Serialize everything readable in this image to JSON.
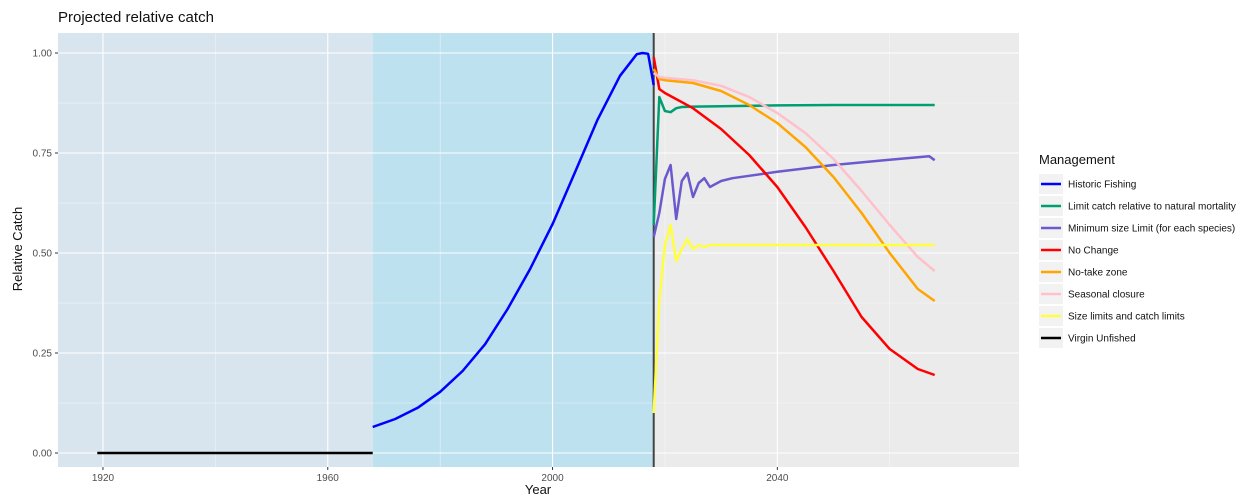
{
  "chart_data": {
    "type": "line",
    "title": "Projected relative catch",
    "xlabel": "Year",
    "ylabel": "Relative Catch",
    "xlim": [
      1912,
      2083
    ],
    "ylim": [
      -0.035,
      1.05
    ],
    "x_ticks": [
      1920,
      1960,
      2000,
      2040
    ],
    "x_tick_labels": [
      "1920",
      "1960",
      "2000",
      "2040"
    ],
    "y_ticks": [
      0,
      0.25,
      0.5,
      0.75,
      1.0
    ],
    "y_tick_labels": [
      "0.00",
      "0.25",
      "0.50",
      "0.75",
      "1.00"
    ],
    "grid": true,
    "legend_position": "right",
    "legend_title": "Management",
    "background_regions": [
      {
        "x_start": 1912,
        "x_end": 1968,
        "color": "#d8e5ee"
      },
      {
        "x_start": 1968,
        "x_end": 2018,
        "color": "#bde1ef"
      },
      {
        "x_start": 2018,
        "x_end": 2083,
        "color": "#ebebeb"
      }
    ],
    "vertical_line": {
      "x": 2018,
      "color": "#444444"
    },
    "series": [
      {
        "name": "Historic Fishing",
        "color": "#0000ff",
        "x": [
          1968,
          1972,
          1976,
          1980,
          1984,
          1988,
          1992,
          1996,
          2000,
          2004,
          2008,
          2012,
          2015,
          2016,
          2017,
          2018
        ],
        "y": [
          0.065,
          0.085,
          0.113,
          0.153,
          0.205,
          0.272,
          0.36,
          0.46,
          0.572,
          0.702,
          0.833,
          0.943,
          0.997,
          1.0,
          0.998,
          0.92
        ]
      },
      {
        "name": "Limit catch relative to natural mortality",
        "color": "#009e73",
        "x": [
          2018,
          2019,
          2020,
          2021,
          2022,
          2023,
          2025,
          2030,
          2040,
          2050,
          2060,
          2068
        ],
        "y": [
          0.57,
          0.89,
          0.855,
          0.852,
          0.862,
          0.865,
          0.866,
          0.867,
          0.869,
          0.87,
          0.87,
          0.87
        ]
      },
      {
        "name": "Minimum size Limit (for each species)",
        "color": "#6a5acd",
        "x": [
          2018,
          2019,
          2020,
          2021,
          2022,
          2023,
          2024,
          2025,
          2026,
          2027,
          2028,
          2030,
          2032,
          2035,
          2040,
          2050,
          2060,
          2067,
          2068
        ],
        "y": [
          0.54,
          0.6,
          0.685,
          0.72,
          0.585,
          0.68,
          0.7,
          0.64,
          0.675,
          0.687,
          0.665,
          0.68,
          0.687,
          0.693,
          0.703,
          0.72,
          0.733,
          0.742,
          0.732
        ]
      },
      {
        "name": "No Change",
        "color": "#ff0000",
        "x": [
          2018,
          2019,
          2020,
          2025,
          2030,
          2035,
          2040,
          2045,
          2050,
          2055,
          2060,
          2065,
          2068
        ],
        "y": [
          0.99,
          0.91,
          0.9,
          0.862,
          0.81,
          0.745,
          0.665,
          0.565,
          0.455,
          0.34,
          0.26,
          0.21,
          0.195
        ]
      },
      {
        "name": "No-take zone",
        "color": "#ffa500",
        "x": [
          2018,
          2019,
          2020,
          2025,
          2030,
          2035,
          2040,
          2045,
          2050,
          2055,
          2060,
          2065,
          2068
        ],
        "y": [
          0.96,
          0.935,
          0.932,
          0.925,
          0.905,
          0.87,
          0.825,
          0.765,
          0.69,
          0.6,
          0.5,
          0.41,
          0.38
        ]
      },
      {
        "name": "Seasonal closure",
        "color": "#ffc0cb",
        "x": [
          2018,
          2019,
          2020,
          2025,
          2030,
          2035,
          2040,
          2045,
          2050,
          2055,
          2060,
          2065,
          2068
        ],
        "y": [
          0.95,
          0.94,
          0.938,
          0.932,
          0.918,
          0.89,
          0.85,
          0.8,
          0.735,
          0.655,
          0.57,
          0.49,
          0.455
        ]
      },
      {
        "name": "Size limits and catch limits",
        "color": "#ffff40",
        "x": [
          2018,
          2019,
          2020,
          2021,
          2022,
          2023,
          2024,
          2025,
          2026,
          2027,
          2028,
          2030,
          2035,
          2040,
          2050,
          2060,
          2068
        ],
        "y": [
          0.1,
          0.38,
          0.52,
          0.57,
          0.48,
          0.51,
          0.535,
          0.51,
          0.52,
          0.515,
          0.52,
          0.52,
          0.52,
          0.52,
          0.52,
          0.52,
          0.52
        ]
      },
      {
        "name": "Virgin Unfished",
        "color": "#000000",
        "x": [
          1919,
          1968
        ],
        "y": [
          0.0,
          0.0
        ]
      }
    ]
  }
}
